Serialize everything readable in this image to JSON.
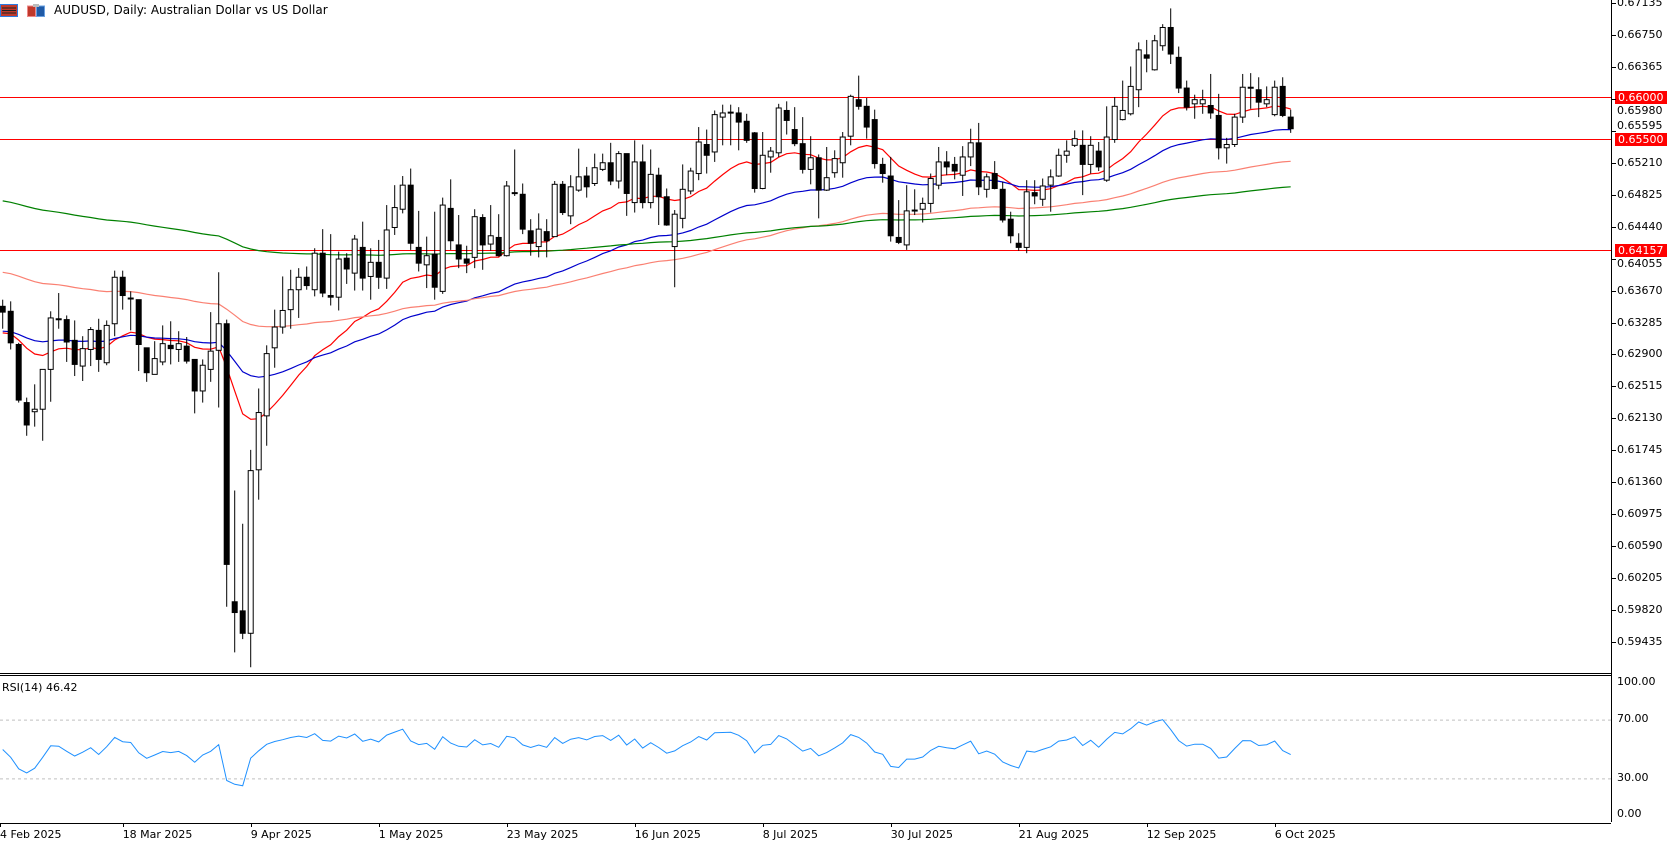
{
  "window": {
    "title": "AUDUSD, Daily:  Australian Dollar vs US Dollar",
    "icons": [
      "menu-icon",
      "one-click-trading-icon"
    ]
  },
  "chart_data": {
    "type": "candlestick",
    "symbol": "AUDUSD",
    "timeframe": "Daily",
    "price_axis_labels": [
      "0.67135",
      "0.66750",
      "0.66365",
      "0.65980",
      "0.65595",
      "0.65210",
      "0.64825",
      "0.64440",
      "0.64055",
      "0.63670",
      "0.63285",
      "0.62900",
      "0.62515",
      "0.62130",
      "0.61745",
      "0.61360",
      "0.60975",
      "0.60590",
      "0.60205",
      "0.59820",
      "0.59435"
    ],
    "ylim": [
      0.591,
      0.6717
    ],
    "date_labels": [
      "4 Feb 2025",
      "18 Mar 2025",
      "9 Apr 2025",
      "1 May 2025",
      "23 May 2025",
      "16 Jun 2025",
      "8 Jul 2025",
      "30 Jul 2025",
      "21 Aug 2025",
      "12 Sep 2025",
      "6 Oct 2025"
    ],
    "horizontal_lines": [
      {
        "price": 0.66,
        "label": "0.66000",
        "color": "#ff0000"
      },
      {
        "price": 0.655,
        "label": "0.65500",
        "color": "#ff0000"
      },
      {
        "price": 0.64157,
        "label": "0.64157",
        "color": "#ff0000"
      }
    ],
    "moving_averages": [
      {
        "color": "#ff0000",
        "first_value": 0.6316
      },
      {
        "color": "#0000cc",
        "first_value": 0.6318
      },
      {
        "color": "#fa8072",
        "first_value": 0.6389
      },
      {
        "color": "#008000",
        "first_value": 0.6475
      }
    ],
    "ohlc": [
      [
        0.6348,
        0.6356,
        0.6321,
        0.6341
      ],
      [
        0.6342,
        0.6354,
        0.6296,
        0.6304
      ],
      [
        0.6302,
        0.6304,
        0.6232,
        0.6235
      ],
      [
        0.6232,
        0.6238,
        0.6192,
        0.6205
      ],
      [
        0.6221,
        0.6254,
        0.6203,
        0.6224
      ],
      [
        0.6224,
        0.6272,
        0.6186,
        0.6272
      ],
      [
        0.6272,
        0.6342,
        0.6233,
        0.6334
      ],
      [
        0.6333,
        0.6364,
        0.6321,
        0.6332
      ],
      [
        0.6332,
        0.6337,
        0.6281,
        0.6305
      ],
      [
        0.6307,
        0.6331,
        0.6264,
        0.6278
      ],
      [
        0.6276,
        0.6312,
        0.6258,
        0.6297
      ],
      [
        0.6296,
        0.6323,
        0.6276,
        0.632
      ],
      [
        0.6319,
        0.6333,
        0.6269,
        0.6284
      ],
      [
        0.628,
        0.6331,
        0.6277,
        0.6325
      ],
      [
        0.6327,
        0.6391,
        0.6312,
        0.6383
      ],
      [
        0.6383,
        0.6391,
        0.6344,
        0.6361
      ],
      [
        0.6358,
        0.6366,
        0.6319,
        0.6357
      ],
      [
        0.6356,
        0.6356,
        0.627,
        0.6302
      ],
      [
        0.6298,
        0.6298,
        0.6257,
        0.6268
      ],
      [
        0.6266,
        0.6306,
        0.6266,
        0.6285
      ],
      [
        0.6281,
        0.6325,
        0.6277,
        0.6303
      ],
      [
        0.6301,
        0.633,
        0.6278,
        0.6297
      ],
      [
        0.6296,
        0.6318,
        0.6281,
        0.6303
      ],
      [
        0.63,
        0.6311,
        0.6279,
        0.6282
      ],
      [
        0.6284,
        0.6284,
        0.6219,
        0.6246
      ],
      [
        0.6246,
        0.6284,
        0.6232,
        0.6277
      ],
      [
        0.6272,
        0.6341,
        0.6257,
        0.6294
      ],
      [
        0.6295,
        0.6389,
        0.6226,
        0.6327
      ],
      [
        0.6327,
        0.6332,
        0.5986,
        0.6037
      ],
      [
        0.5992,
        0.6126,
        0.5931,
        0.5979
      ],
      [
        0.5981,
        0.6086,
        0.5947,
        0.5954
      ],
      [
        0.5954,
        0.6175,
        0.5913,
        0.615
      ],
      [
        0.6151,
        0.6249,
        0.6115,
        0.622
      ],
      [
        0.6216,
        0.6301,
        0.618,
        0.6291
      ],
      [
        0.6298,
        0.6344,
        0.6274,
        0.6323
      ],
      [
        0.6323,
        0.6384,
        0.6315,
        0.6343
      ],
      [
        0.6344,
        0.6392,
        0.6321,
        0.6368
      ],
      [
        0.6368,
        0.6394,
        0.6334,
        0.6383
      ],
      [
        0.6383,
        0.6396,
        0.6368,
        0.6373
      ],
      [
        0.6368,
        0.6418,
        0.636,
        0.6412
      ],
      [
        0.6412,
        0.6441,
        0.6359,
        0.6364
      ],
      [
        0.6361,
        0.6435,
        0.6349,
        0.6359
      ],
      [
        0.6359,
        0.6414,
        0.6343,
        0.6405
      ],
      [
        0.6406,
        0.6412,
        0.6375,
        0.6393
      ],
      [
        0.6388,
        0.6434,
        0.6367,
        0.6429
      ],
      [
        0.6419,
        0.645,
        0.6367,
        0.6382
      ],
      [
        0.6384,
        0.6418,
        0.6356,
        0.6401
      ],
      [
        0.6401,
        0.6428,
        0.6369,
        0.6383
      ],
      [
        0.6382,
        0.647,
        0.6369,
        0.644
      ],
      [
        0.6443,
        0.6494,
        0.6434,
        0.6467
      ],
      [
        0.6465,
        0.6505,
        0.646,
        0.6494
      ],
      [
        0.6494,
        0.6514,
        0.6416,
        0.6424
      ],
      [
        0.6419,
        0.6463,
        0.639,
        0.64
      ],
      [
        0.6398,
        0.6432,
        0.637,
        0.6409
      ],
      [
        0.6411,
        0.6462,
        0.6356,
        0.6371
      ],
      [
        0.6366,
        0.6479,
        0.6363,
        0.647
      ],
      [
        0.6466,
        0.6501,
        0.6416,
        0.6427
      ],
      [
        0.6422,
        0.6458,
        0.6394,
        0.6405
      ],
      [
        0.6405,
        0.6421,
        0.6388,
        0.64
      ],
      [
        0.6407,
        0.6465,
        0.6394,
        0.6456
      ],
      [
        0.6455,
        0.6459,
        0.6392,
        0.6422
      ],
      [
        0.6423,
        0.647,
        0.6415,
        0.6433
      ],
      [
        0.6431,
        0.6459,
        0.6408,
        0.6409
      ],
      [
        0.6409,
        0.6499,
        0.6408,
        0.6493
      ],
      [
        0.6485,
        0.6537,
        0.6481,
        0.6484
      ],
      [
        0.6483,
        0.6496,
        0.6435,
        0.6441
      ],
      [
        0.6439,
        0.6453,
        0.6409,
        0.6424
      ],
      [
        0.642,
        0.646,
        0.6407,
        0.6441
      ],
      [
        0.6438,
        0.6453,
        0.6407,
        0.6427
      ],
      [
        0.6432,
        0.6499,
        0.6432,
        0.6495
      ],
      [
        0.6495,
        0.6499,
        0.6458,
        0.6461
      ],
      [
        0.6457,
        0.6506,
        0.6447,
        0.6492
      ],
      [
        0.6488,
        0.6538,
        0.6486,
        0.6504
      ],
      [
        0.6505,
        0.6516,
        0.6479,
        0.6492
      ],
      [
        0.6496,
        0.6532,
        0.6493,
        0.6515
      ],
      [
        0.6513,
        0.6532,
        0.6511,
        0.6521
      ],
      [
        0.6521,
        0.6545,
        0.6494,
        0.6499
      ],
      [
        0.6499,
        0.6535,
        0.649,
        0.6532
      ],
      [
        0.6532,
        0.6532,
        0.6457,
        0.6484
      ],
      [
        0.6473,
        0.6548,
        0.6461,
        0.6522
      ],
      [
        0.6522,
        0.6543,
        0.6466,
        0.6473
      ],
      [
        0.6473,
        0.6537,
        0.6466,
        0.6507
      ],
      [
        0.6506,
        0.6515,
        0.6446,
        0.648
      ],
      [
        0.648,
        0.649,
        0.6445,
        0.6446
      ],
      [
        0.642,
        0.6464,
        0.6371,
        0.6459
      ],
      [
        0.6454,
        0.6519,
        0.6442,
        0.6489
      ],
      [
        0.6487,
        0.6515,
        0.6483,
        0.6511
      ],
      [
        0.6508,
        0.6564,
        0.65,
        0.6546
      ],
      [
        0.6543,
        0.6561,
        0.6508,
        0.653
      ],
      [
        0.6534,
        0.6584,
        0.6522,
        0.6579
      ],
      [
        0.6576,
        0.6591,
        0.6542,
        0.6581
      ],
      [
        0.6582,
        0.6591,
        0.6542,
        0.6582
      ],
      [
        0.6581,
        0.6588,
        0.6536,
        0.657
      ],
      [
        0.6571,
        0.658,
        0.6545,
        0.6548
      ],
      [
        0.6557,
        0.6558,
        0.6485,
        0.649
      ],
      [
        0.649,
        0.6558,
        0.6489,
        0.653
      ],
      [
        0.6528,
        0.654,
        0.6509,
        0.6535
      ],
      [
        0.6533,
        0.6592,
        0.6528,
        0.6587
      ],
      [
        0.6584,
        0.6595,
        0.6555,
        0.6572
      ],
      [
        0.6561,
        0.6588,
        0.6541,
        0.6544
      ],
      [
        0.6544,
        0.6576,
        0.6508,
        0.6513
      ],
      [
        0.6513,
        0.6553,
        0.6495,
        0.6527
      ],
      [
        0.6527,
        0.6531,
        0.6454,
        0.6488
      ],
      [
        0.6488,
        0.654,
        0.6487,
        0.6503
      ],
      [
        0.6509,
        0.6536,
        0.6503,
        0.6526
      ],
      [
        0.6521,
        0.6558,
        0.6503,
        0.6552
      ],
      [
        0.6553,
        0.6603,
        0.6542,
        0.6601
      ],
      [
        0.6597,
        0.6626,
        0.6585,
        0.6589
      ],
      [
        0.6589,
        0.6599,
        0.655,
        0.6564
      ],
      [
        0.6573,
        0.6585,
        0.6514,
        0.652
      ],
      [
        0.6519,
        0.6527,
        0.6497,
        0.6508
      ],
      [
        0.6505,
        0.6528,
        0.6426,
        0.6433
      ],
      [
        0.6431,
        0.6476,
        0.6423,
        0.6425
      ],
      [
        0.6422,
        0.6494,
        0.6416,
        0.6463
      ],
      [
        0.6464,
        0.6489,
        0.6458,
        0.6463
      ],
      [
        0.6465,
        0.6479,
        0.6449,
        0.6472
      ],
      [
        0.6472,
        0.6508,
        0.6461,
        0.6502
      ],
      [
        0.6494,
        0.654,
        0.6489,
        0.6522
      ],
      [
        0.6522,
        0.6535,
        0.6506,
        0.6516
      ],
      [
        0.6519,
        0.6528,
        0.6501,
        0.6511
      ],
      [
        0.6506,
        0.6541,
        0.6481,
        0.6528
      ],
      [
        0.6528,
        0.6562,
        0.6517,
        0.6545
      ],
      [
        0.6545,
        0.6569,
        0.6482,
        0.6492
      ],
      [
        0.6489,
        0.6508,
        0.6479,
        0.6504
      ],
      [
        0.6508,
        0.6523,
        0.6489,
        0.649
      ],
      [
        0.6489,
        0.6498,
        0.6449,
        0.6452
      ],
      [
        0.6453,
        0.6462,
        0.6424,
        0.6433
      ],
      [
        0.6424,
        0.6436,
        0.6415,
        0.6419
      ],
      [
        0.6419,
        0.65,
        0.6412,
        0.6486
      ],
      [
        0.6485,
        0.65,
        0.6471,
        0.6481
      ],
      [
        0.6477,
        0.6502,
        0.6469,
        0.6493
      ],
      [
        0.6494,
        0.6513,
        0.6462,
        0.6504
      ],
      [
        0.6505,
        0.6538,
        0.6504,
        0.653
      ],
      [
        0.653,
        0.6548,
        0.6521,
        0.6535
      ],
      [
        0.6542,
        0.656,
        0.654,
        0.655
      ],
      [
        0.6542,
        0.656,
        0.6482,
        0.6519
      ],
      [
        0.6519,
        0.6553,
        0.6508,
        0.6542
      ],
      [
        0.6535,
        0.6546,
        0.6511,
        0.6516
      ],
      [
        0.65,
        0.6589,
        0.6498,
        0.6552
      ],
      [
        0.6549,
        0.66,
        0.6545,
        0.6589
      ],
      [
        0.6573,
        0.662,
        0.6572,
        0.6584
      ],
      [
        0.658,
        0.6637,
        0.6578,
        0.6613
      ],
      [
        0.6609,
        0.6666,
        0.6588,
        0.6657
      ],
      [
        0.6651,
        0.6669,
        0.663,
        0.6647
      ],
      [
        0.6633,
        0.6675,
        0.6632,
        0.6668
      ],
      [
        0.6662,
        0.6688,
        0.6656,
        0.6684
      ],
      [
        0.6684,
        0.6707,
        0.664,
        0.6652
      ],
      [
        0.6648,
        0.6661,
        0.6605,
        0.6611
      ],
      [
        0.6611,
        0.662,
        0.6584,
        0.6588
      ],
      [
        0.6592,
        0.6603,
        0.6574,
        0.6597
      ],
      [
        0.6592,
        0.6609,
        0.658,
        0.6597
      ],
      [
        0.659,
        0.6628,
        0.6574,
        0.6581
      ],
      [
        0.6578,
        0.6604,
        0.6525,
        0.6539
      ],
      [
        0.6539,
        0.6551,
        0.652,
        0.6543
      ],
      [
        0.6543,
        0.658,
        0.654,
        0.6576
      ],
      [
        0.6576,
        0.6628,
        0.6569,
        0.6612
      ],
      [
        0.6612,
        0.6629,
        0.6586,
        0.6611
      ],
      [
        0.6609,
        0.6624,
        0.6576,
        0.6594
      ],
      [
        0.6592,
        0.6613,
        0.6588,
        0.6597
      ],
      [
        0.6579,
        0.662,
        0.6577,
        0.6612
      ],
      [
        0.6613,
        0.6624,
        0.6576,
        0.6578
      ],
      [
        0.6576,
        0.6585,
        0.6557,
        0.6562
      ]
    ],
    "rsi": {
      "label": "RSI(14) 46.42",
      "value": 46.42,
      "color": "#1e90ff",
      "levels": [
        70,
        30
      ],
      "axis_labels": [
        "100.00",
        "70.00",
        "30.00",
        "0.00"
      ],
      "ylim": [
        0,
        100
      ]
    }
  }
}
